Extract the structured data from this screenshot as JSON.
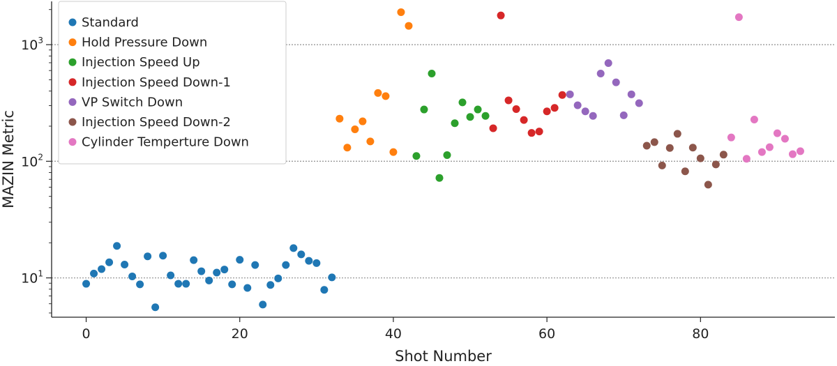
{
  "chart_data": {
    "type": "scatter",
    "title": "",
    "xlabel": "Shot Number",
    "ylabel": "MAZIN Metric",
    "xlim": [
      -4.5,
      97.5
    ],
    "ylim": [
      4.6,
      2350
    ],
    "yscale": "log",
    "x_ticks": [
      0,
      20,
      40,
      60,
      80
    ],
    "y_ticks": [
      {
        "value": 10,
        "base": "10",
        "exp": "1"
      },
      {
        "value": 100,
        "base": "10",
        "exp": "2"
      },
      {
        "value": 1000,
        "base": "10",
        "exp": "3"
      }
    ],
    "grid": "horizontal-dotted-major",
    "legend_position": "top-left",
    "series": [
      {
        "name": "Standard",
        "color": "#1f77b4",
        "x": [
          0,
          1,
          2,
          3,
          4,
          5,
          6,
          7,
          8,
          9,
          10,
          11,
          12,
          13,
          14,
          15,
          16,
          17,
          18,
          19,
          20,
          21,
          22,
          23,
          24,
          25,
          26,
          27,
          28,
          29,
          30,
          31,
          32
        ],
        "y": [
          8.9,
          10.9,
          11.9,
          13.6,
          18.8,
          13.0,
          10.3,
          8.8,
          15.3,
          5.6,
          15.5,
          10.5,
          8.9,
          8.9,
          14.2,
          11.4,
          9.5,
          11.1,
          11.8,
          8.8,
          14.3,
          8.2,
          12.9,
          5.9,
          8.7,
          9.9,
          12.9,
          18.0,
          15.9,
          14.0,
          13.4,
          7.9,
          10.1
        ]
      },
      {
        "name": "Hold Pressure Down",
        "color": "#ff7f0e",
        "x": [
          33,
          34,
          35,
          36,
          37,
          38,
          39,
          40,
          41,
          42
        ],
        "y": [
          232,
          131,
          188,
          220,
          148,
          385,
          362,
          120,
          1900,
          1450
        ]
      },
      {
        "name": "Injection Speed Up",
        "color": "#2ca02c",
        "x": [
          43,
          44,
          45,
          46,
          47,
          48,
          49,
          50,
          51,
          52
        ],
        "y": [
          111,
          278,
          565,
          72,
          113,
          212,
          320,
          240,
          278,
          245
        ]
      },
      {
        "name": "Injection Speed Down-1",
        "color": "#d62728",
        "x": [
          53,
          54,
          55,
          56,
          57,
          58,
          59,
          60,
          61,
          62
        ],
        "y": [
          192,
          1780,
          333,
          280,
          226,
          175,
          180,
          268,
          287,
          370
        ]
      },
      {
        "name": "VP Switch Down",
        "color": "#9467bd",
        "x": [
          63,
          64,
          65,
          66,
          67,
          68,
          69,
          70,
          71,
          72
        ],
        "y": [
          375,
          302,
          268,
          245,
          565,
          695,
          475,
          248,
          375,
          315
        ]
      },
      {
        "name": "Injection Speed Down-2",
        "color": "#8c564b",
        "x": [
          73,
          74,
          75,
          76,
          77,
          78,
          79,
          80,
          81,
          82,
          83
        ],
        "y": [
          136,
          146,
          92,
          130,
          172,
          82,
          131,
          106,
          63,
          94,
          114
        ]
      },
      {
        "name": "Cylinder Temperture Down",
        "color": "#e377c2",
        "x": [
          84,
          85,
          86,
          87,
          88,
          89,
          90,
          91,
          92,
          93
        ],
        "y": [
          160,
          1720,
          105,
          228,
          120,
          132,
          174,
          156,
          115,
          122
        ]
      }
    ]
  }
}
